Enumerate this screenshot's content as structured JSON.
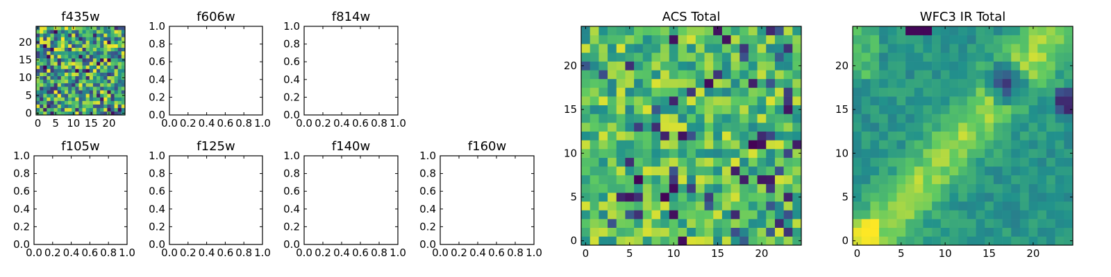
{
  "chart_data": [
    {
      "type": "heatmap",
      "title": "f435w",
      "xticks": [
        0,
        5,
        10,
        15,
        20
      ],
      "yticks": [
        0,
        5,
        10,
        15,
        20
      ],
      "xlim": [
        -0.5,
        24.5
      ],
      "ylim": [
        -0.5,
        24.5
      ],
      "grid_size": 25,
      "colormap": "viridis",
      "values_note": "pixel noise image",
      "has_data": true
    },
    {
      "type": "heatmap",
      "title": "f606w",
      "xticks": [
        0.0,
        0.2,
        0.4,
        0.6,
        0.8,
        1.0
      ],
      "yticks": [
        0.0,
        0.2,
        0.4,
        0.6,
        0.8,
        1.0
      ],
      "xlim": [
        0,
        1
      ],
      "ylim": [
        0,
        1
      ],
      "has_data": false
    },
    {
      "type": "heatmap",
      "title": "f814w",
      "xticks": [
        0.0,
        0.2,
        0.4,
        0.6,
        0.8,
        1.0
      ],
      "yticks": [
        0.0,
        0.2,
        0.4,
        0.6,
        0.8,
        1.0
      ],
      "xlim": [
        0,
        1
      ],
      "ylim": [
        0,
        1
      ],
      "has_data": false
    },
    {
      "type": "heatmap",
      "title": "f105w",
      "xticks": [
        0.0,
        0.2,
        0.4,
        0.6,
        0.8,
        1.0
      ],
      "yticks": [
        0.0,
        0.2,
        0.4,
        0.6,
        0.8,
        1.0
      ],
      "xlim": [
        0,
        1
      ],
      "ylim": [
        0,
        1
      ],
      "has_data": false
    },
    {
      "type": "heatmap",
      "title": "f125w",
      "xticks": [
        0.0,
        0.2,
        0.4,
        0.6,
        0.8,
        1.0
      ],
      "yticks": [
        0.0,
        0.2,
        0.4,
        0.6,
        0.8,
        1.0
      ],
      "xlim": [
        0,
        1
      ],
      "ylim": [
        0,
        1
      ],
      "has_data": false
    },
    {
      "type": "heatmap",
      "title": "f140w",
      "xticks": [
        0.0,
        0.2,
        0.4,
        0.6,
        0.8,
        1.0
      ],
      "yticks": [
        0.0,
        0.2,
        0.4,
        0.6,
        0.8,
        1.0
      ],
      "xlim": [
        0,
        1
      ],
      "ylim": [
        0,
        1
      ],
      "has_data": false
    },
    {
      "type": "heatmap",
      "title": "f160w",
      "xticks": [
        0.0,
        0.2,
        0.4,
        0.6,
        0.8,
        1.0
      ],
      "yticks": [
        0.0,
        0.2,
        0.4,
        0.6,
        0.8,
        1.0
      ],
      "xlim": [
        0,
        1
      ],
      "ylim": [
        0,
        1
      ],
      "has_data": false
    },
    {
      "type": "heatmap",
      "title": "ACS Total",
      "xticks": [
        0,
        5,
        10,
        15,
        20
      ],
      "yticks": [
        0,
        5,
        10,
        15,
        20
      ],
      "xlim": [
        -0.5,
        24.5
      ],
      "ylim": [
        -0.5,
        24.5
      ],
      "grid_size": 25,
      "colormap": "viridis",
      "values_note": "noisy flux map with scattered dark pixels",
      "has_data": true
    },
    {
      "type": "heatmap",
      "title": "WFC3 IR Total",
      "xticks": [
        0,
        5,
        10,
        15,
        20
      ],
      "yticks": [
        0,
        5,
        10,
        15,
        20
      ],
      "xlim": [
        -0.5,
        24.5
      ],
      "ylim": [
        -0.5,
        24.5
      ],
      "grid_size": 25,
      "colormap": "viridis",
      "values_note": "smooth flux map, bright diagonal band, dark spot near (17, 18)",
      "has_data": true
    }
  ],
  "colors": {
    "viridis": [
      "#440154",
      "#3b528b",
      "#21918c",
      "#5ec962",
      "#fde725"
    ],
    "axes": "#000000",
    "background": "#ffffff"
  }
}
